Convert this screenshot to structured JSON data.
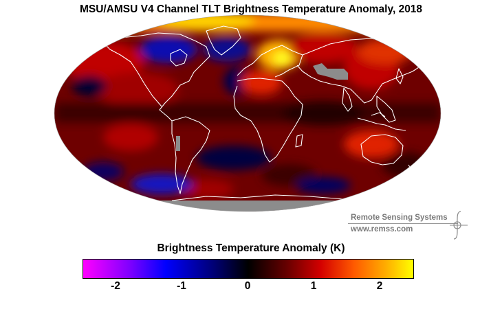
{
  "title": "MSU/AMSU V4 Channel TLT Brightness Temperature Anomaly, 2018",
  "logo": {
    "name": "Remote Sensing Systems",
    "url": "www.remss.com"
  },
  "colorbar": {
    "title": "Brightness Temperature Anomaly (K)",
    "min": -2.5,
    "max": 2.5,
    "ticks": [
      "-2",
      "-1",
      "0",
      "1",
      "2"
    ],
    "colors": [
      "#ff00ff",
      "#0000ff",
      "#000000",
      "#d40000",
      "#ffff00"
    ]
  },
  "map": {
    "projection": "mollweide",
    "no_data_color": "#8c8c8c",
    "coastline_color": "#ffffff"
  }
}
